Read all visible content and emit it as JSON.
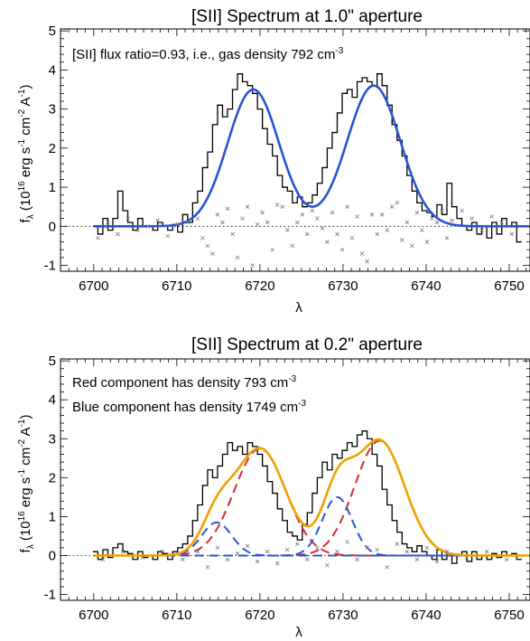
{
  "chart_data": [
    {
      "type": "line",
      "title": "[SII] Spectrum at 1.0\" aperture",
      "annotation": {
        "prefix": "[SII] flux ratio=0.93, i.e., gas density 792 cm",
        "sup": "-3"
      },
      "xlabel": "λ",
      "ylabel": {
        "a": "f",
        "sub": "λ",
        "b": " (10",
        "sup1": "16",
        "c": " erg s",
        "sup2": "-1",
        "d": " cm",
        "sup3": "-2",
        "e": " A",
        "sup4": "-1",
        "f": ")"
      },
      "xlim": [
        6696,
        6752.5
      ],
      "ylim": [
        -1.15,
        5.05
      ],
      "xticks": [
        6700,
        6710,
        6720,
        6730,
        6740,
        6750
      ],
      "yticks": [
        -1,
        0,
        1,
        2,
        3,
        4,
        5
      ],
      "grid": false,
      "series": [
        {
          "kind": "step-data",
          "color": "#000000",
          "x": [
            6700.2,
            6700.8,
            6701.4,
            6702.0,
            6702.6,
            6703.2,
            6703.8,
            6704.4,
            6705.0,
            6705.6,
            6706.2,
            6706.8,
            6707.4,
            6708.0,
            6708.6,
            6709.2,
            6709.8,
            6710.4,
            6711.0,
            6711.6,
            6712.2,
            6712.8,
            6713.4,
            6714.0,
            6714.6,
            6715.2,
            6715.8,
            6716.4,
            6717.0,
            6717.6,
            6718.2,
            6718.8,
            6719.4,
            6720.0,
            6720.6,
            6721.2,
            6721.8,
            6722.4,
            6723.0,
            6723.6,
            6724.2,
            6724.8,
            6725.4,
            6726.0,
            6726.6,
            6727.2,
            6727.8,
            6728.4,
            6729.0,
            6729.6,
            6730.2,
            6730.8,
            6731.4,
            6732.0,
            6732.6,
            6733.2,
            6733.8,
            6734.4,
            6735.0,
            6735.6,
            6736.2,
            6736.8,
            6737.4,
            6738.0,
            6738.6,
            6739.2,
            6739.8,
            6740.4,
            6741.0,
            6741.6,
            6742.2,
            6742.8,
            6743.4,
            6744.0,
            6744.6,
            6745.2,
            6745.8,
            6746.4,
            6747.0,
            6747.6,
            6748.2,
            6748.8,
            6749.4,
            6750.0,
            6750.6,
            6751.2
          ],
          "y": [
            0.0,
            -0.2,
            0.2,
            -0.1,
            0.2,
            0.9,
            0.4,
            0.1,
            -0.1,
            0.2,
            0.0,
            0.0,
            -0.1,
            0.1,
            0.0,
            -0.1,
            0.05,
            -0.15,
            0.3,
            0.1,
            0.6,
            0.9,
            1.5,
            1.9,
            2.6,
            3.1,
            2.8,
            3.0,
            3.5,
            3.9,
            3.7,
            3.6,
            3.4,
            3.0,
            2.5,
            2.1,
            1.8,
            1.3,
            1.0,
            0.9,
            0.6,
            0.75,
            0.5,
            0.6,
            0.8,
            1.1,
            1.5,
            2.0,
            2.4,
            2.9,
            3.4,
            3.5,
            3.3,
            3.7,
            3.8,
            3.7,
            3.6,
            3.9,
            3.6,
            3.1,
            2.6,
            2.2,
            1.8,
            1.3,
            0.9,
            0.6,
            0.4,
            0.35,
            0.25,
            0.55,
            0.3,
            1.1,
            0.5,
            0.2,
            0.0,
            -0.1,
            0.1,
            -0.2,
            0.0,
            -0.3,
            0.1,
            -0.2,
            0.2,
            0.0,
            0.1,
            -0.4
          ]
        },
        {
          "kind": "model",
          "color": "#2b54d4",
          "components": [
            {
              "amp": 3.5,
              "center": 6719.2,
              "sigma": 3.1
            },
            {
              "amp": 3.6,
              "center": 6733.7,
              "sigma": 3.2
            }
          ]
        },
        {
          "kind": "residual-x",
          "color": "#7a7a7a",
          "x": [
            6700.5,
            6701.7,
            6702.9,
            6704.1,
            6705.3,
            6706.5,
            6707.7,
            6708.9,
            6710.1,
            6711.3,
            6712.5,
            6713.1,
            6713.7,
            6714.3,
            6714.9,
            6715.5,
            6716.1,
            6716.7,
            6717.3,
            6717.9,
            6718.5,
            6719.1,
            6719.7,
            6720.3,
            6720.9,
            6721.5,
            6722.1,
            6722.7,
            6723.3,
            6723.9,
            6724.5,
            6725.1,
            6725.7,
            6726.3,
            6726.9,
            6727.5,
            6728.1,
            6728.7,
            6729.3,
            6729.9,
            6730.5,
            6731.1,
            6731.7,
            6732.3,
            6732.9,
            6733.5,
            6734.1,
            6734.7,
            6735.3,
            6735.9,
            6736.5,
            6737.1,
            6737.7,
            6738.3,
            6738.9,
            6739.5,
            6740.1,
            6740.7,
            6741.3,
            6741.9,
            6742.5,
            6743.1,
            6744.3,
            6745.5,
            6746.7,
            6747.9,
            6749.1,
            6750.3
          ],
          "y": [
            -0.3,
            0.1,
            -0.2,
            0.2,
            -0.1,
            0.0,
            0.15,
            -0.25,
            0.05,
            0.1,
            0.2,
            -0.3,
            -0.5,
            -0.7,
            0.3,
            0.1,
            0.45,
            -0.2,
            -0.8,
            0.2,
            0.5,
            -1.0,
            0.05,
            0.35,
            0.1,
            -0.6,
            0.55,
            0.5,
            -0.1,
            -0.5,
            0.1,
            0.3,
            -0.2,
            0.4,
            0.2,
            -0.05,
            -0.4,
            0.35,
            -0.2,
            -0.6,
            0.5,
            -0.3,
            0.25,
            -0.7,
            -0.9,
            0.3,
            -0.2,
            0.3,
            -0.1,
            0.5,
            0.6,
            -0.35,
            0.1,
            -0.5,
            0.35,
            -0.1,
            -0.4,
            0.2,
            0.1,
            0.4,
            -0.3,
            0.15,
            0.4,
            0.2,
            -0.1,
            0.25,
            0.1,
            -0.2
          ]
        }
      ]
    },
    {
      "type": "line",
      "title": "[SII] Spectrum at 0.2\" aperture",
      "annotations": [
        {
          "prefix": "Red component has density 793 cm",
          "sup": "-3"
        },
        {
          "prefix": "Blue component has density 1749 cm",
          "sup": "-3"
        }
      ],
      "xlabel": "λ",
      "ylabel": {
        "a": "f",
        "sub": "λ",
        "b": " (10",
        "sup1": "16",
        "c": " erg s",
        "sup2": "-1",
        "d": " cm",
        "sup3": "-2",
        "e": " A",
        "sup4": "-1",
        "f": ")"
      },
      "xlim": [
        6696,
        6752.5
      ],
      "ylim": [
        -1.15,
        5.05
      ],
      "xticks": [
        6700,
        6710,
        6720,
        6730,
        6740,
        6750
      ],
      "yticks": [
        -1,
        0,
        1,
        2,
        3,
        4,
        5
      ],
      "grid": false,
      "series": [
        {
          "kind": "step-data",
          "color": "#000000",
          "x": [
            6700.2,
            6700.8,
            6701.4,
            6702.0,
            6702.6,
            6703.2,
            6703.8,
            6704.4,
            6705.0,
            6705.6,
            6706.2,
            6706.8,
            6707.4,
            6708.0,
            6708.6,
            6709.2,
            6709.8,
            6710.4,
            6711.0,
            6711.6,
            6712.2,
            6712.8,
            6713.4,
            6714.0,
            6714.6,
            6715.2,
            6715.8,
            6716.4,
            6717.0,
            6717.6,
            6718.2,
            6718.8,
            6719.4,
            6720.0,
            6720.6,
            6721.2,
            6721.8,
            6722.4,
            6723.0,
            6723.6,
            6724.2,
            6724.8,
            6725.4,
            6726.0,
            6726.6,
            6727.2,
            6727.8,
            6728.4,
            6729.0,
            6729.6,
            6730.2,
            6730.8,
            6731.4,
            6732.0,
            6732.6,
            6733.2,
            6733.8,
            6734.4,
            6735.0,
            6735.6,
            6736.2,
            6736.8,
            6737.4,
            6738.0,
            6738.6,
            6739.2,
            6739.8,
            6740.4,
            6741.0,
            6741.6,
            6742.2,
            6742.8,
            6743.4,
            6744.0,
            6744.6,
            6745.2,
            6745.8,
            6746.4,
            6747.0,
            6747.6,
            6748.2,
            6748.8,
            6749.4,
            6750.0,
            6750.6,
            6751.2
          ],
          "y": [
            0.1,
            -0.1,
            0.15,
            -0.05,
            0.2,
            0.3,
            0.1,
            0.05,
            -0.1,
            0.1,
            -0.05,
            0.0,
            -0.1,
            0.1,
            0.05,
            -0.1,
            0.1,
            0.2,
            0.3,
            0.5,
            0.9,
            1.3,
            1.8,
            2.2,
            2.0,
            2.3,
            2.6,
            2.9,
            2.7,
            2.8,
            2.6,
            2.9,
            2.8,
            2.6,
            2.3,
            1.9,
            1.6,
            1.2,
            0.9,
            0.6,
            0.5,
            0.4,
            0.8,
            1.1,
            1.6,
            2.0,
            2.4,
            2.2,
            2.6,
            2.5,
            2.7,
            2.9,
            2.8,
            3.1,
            3.2,
            3.0,
            2.6,
            2.3,
            1.7,
            1.3,
            0.9,
            0.6,
            0.3,
            0.2,
            0.1,
            0.25,
            0.1,
            0.0,
            -0.1,
            0.15,
            -0.1,
            0.05,
            -0.2,
            0.0,
            0.1,
            -0.15,
            0.1,
            -0.1,
            0.0,
            -0.1,
            0.05,
            -0.05,
            0.1,
            0.0,
            0.05,
            -0.1
          ]
        },
        {
          "kind": "model-component",
          "color": "#d62b2b",
          "dash": true,
          "components": [
            {
              "amp": 2.75,
              "center": 6720.0,
              "sigma": 3.1
            },
            {
              "amp": 2.95,
              "center": 6734.4,
              "sigma": 3.0
            }
          ]
        },
        {
          "kind": "model-component",
          "color": "#2b54d4",
          "dash": true,
          "components": [
            {
              "amp": 0.85,
              "center": 6714.8,
              "sigma": 1.8
            },
            {
              "amp": 1.5,
              "center": 6729.3,
              "sigma": 1.8
            }
          ]
        },
        {
          "kind": "model",
          "color": "#f0a000",
          "components": [
            {
              "amp": 2.75,
              "center": 6720.0,
              "sigma": 3.1
            },
            {
              "amp": 2.95,
              "center": 6734.4,
              "sigma": 3.0
            },
            {
              "amp": 0.85,
              "center": 6714.8,
              "sigma": 1.8
            },
            {
              "amp": 1.5,
              "center": 6729.3,
              "sigma": 1.8
            }
          ]
        },
        {
          "kind": "residual-x",
          "color": "#7a7a7a",
          "x": [
            6701.1,
            6703.5,
            6705.9,
            6708.3,
            6710.7,
            6712.5,
            6713.7,
            6714.9,
            6716.1,
            6717.3,
            6718.5,
            6719.7,
            6720.9,
            6722.1,
            6723.3,
            6724.5,
            6725.7,
            6726.9,
            6728.1,
            6729.3,
            6730.5,
            6731.7,
            6732.9,
            6734.1,
            6735.3,
            6736.5,
            6737.7,
            6738.9,
            6740.1,
            6741.3,
            6742.5,
            6744.9,
            6747.3,
            6749.7
          ],
          "y": [
            -0.1,
            0.1,
            -0.05,
            0.1,
            -0.1,
            0.1,
            -0.3,
            0.2,
            -0.1,
            0.05,
            0.25,
            -0.15,
            0.1,
            -0.2,
            0.15,
            0.3,
            -0.1,
            0.2,
            -0.25,
            0.1,
            0.35,
            -0.1,
            0.2,
            0.15,
            -0.3,
            0.3,
            0.1,
            -0.1,
            0.2,
            -0.15,
            0.1,
            -0.05,
            0.1,
            -0.1
          ]
        }
      ]
    }
  ]
}
